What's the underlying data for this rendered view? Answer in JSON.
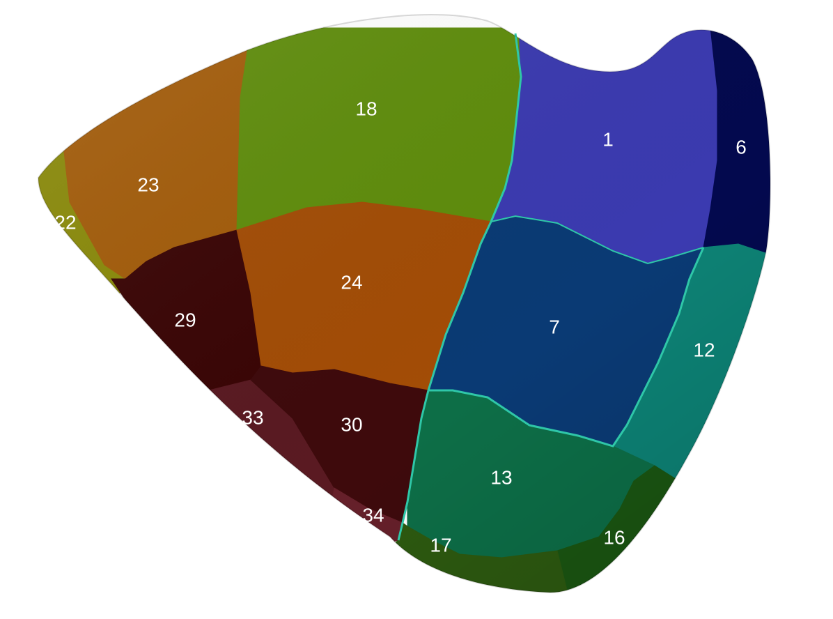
{
  "segments": [
    {
      "id": "s1",
      "label": "1",
      "color": "#3b3ab0"
    },
    {
      "id": "s6",
      "label": "6",
      "color": "#03094e"
    },
    {
      "id": "s7",
      "label": "7",
      "color": "#0a3a74"
    },
    {
      "id": "s12",
      "label": "12",
      "color": "#0d8275"
    },
    {
      "id": "s13",
      "label": "13",
      "color": "#0d6e47"
    },
    {
      "id": "s16",
      "label": "16",
      "color": "#1a5612"
    },
    {
      "id": "s17",
      "label": "17",
      "color": "#2d5a10"
    },
    {
      "id": "s18",
      "label": "18",
      "color": "#5f8d0c"
    },
    {
      "id": "s22",
      "label": "22",
      "color": "#8a8a0a"
    },
    {
      "id": "s23",
      "label": "23",
      "color": "#a35c0a"
    },
    {
      "id": "s24",
      "label": "24",
      "color": "#a34d06"
    },
    {
      "id": "s29",
      "label": "29",
      "color": "#3a0505"
    },
    {
      "id": "s30",
      "label": "30",
      "color": "#3e0a0c"
    },
    {
      "id": "s33",
      "label": "33",
      "color": "#5a1a22"
    },
    {
      "id": "s34",
      "label": "34",
      "color": "#66202a"
    }
  ],
  "boundary_color": "#2fc7a8"
}
